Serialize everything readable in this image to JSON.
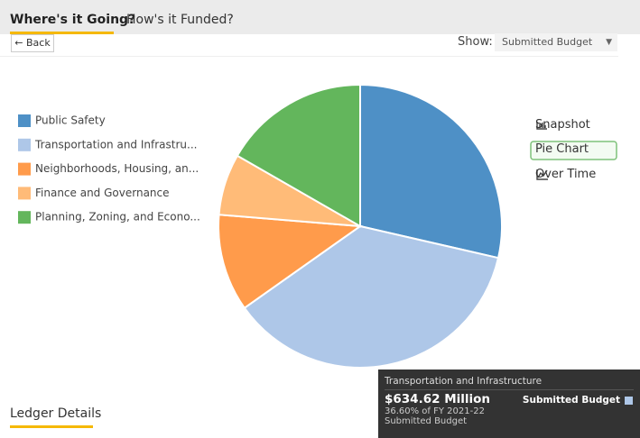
{
  "tabs": [
    "Where's it Going?",
    "How's it Funded?"
  ],
  "back": "← Back",
  "show_label": "Show:",
  "show_value": "Submitted Budget",
  "views": [
    "Snapshot",
    "Pie Chart",
    "Over Time"
  ],
  "chart_data": {
    "type": "pie",
    "categories": [
      "Public Safety",
      "Transportation and Infrastru...",
      "Neighborhoods, Housing, an...",
      "Finance and Governance",
      "Planning, Zoning, and Econo..."
    ],
    "values": [
      28.6,
      36.6,
      11.1,
      7.0,
      16.7
    ],
    "colors": [
      "#4e90c6",
      "#aec7e8",
      "#ff9b4b",
      "#ffbb78",
      "#63b65c"
    ]
  },
  "tooltip": {
    "title": "Transportation and Infrastructure",
    "amount": "$634.62 Million",
    "share": "36.60% of FY 2021-22",
    "budget": "Submitted Budget",
    "series": "Submitted Budget"
  },
  "section": "Ledger Details"
}
